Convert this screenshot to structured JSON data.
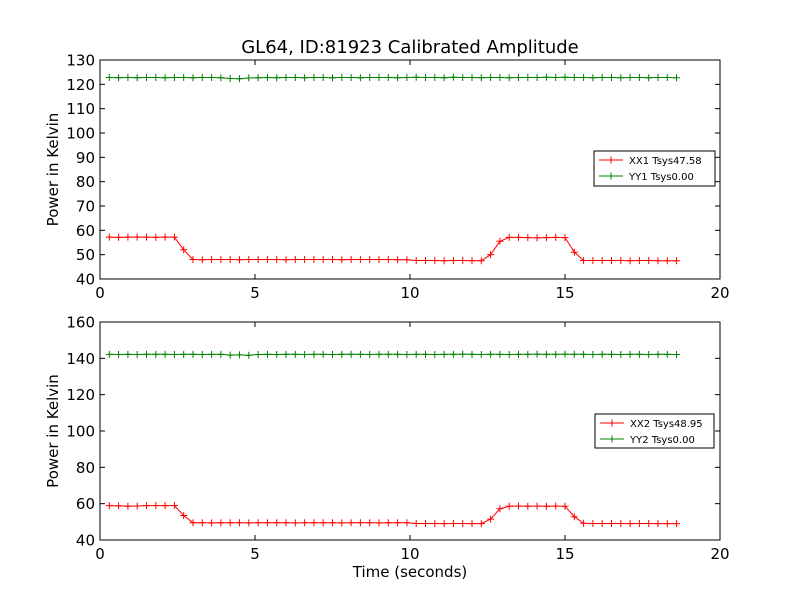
{
  "figure": {
    "title": "GL64, ID:81923 Calibrated Amplitude",
    "xlabel": "Time (seconds)"
  },
  "colors": {
    "xx": "#ff0000",
    "yy": "#008000"
  },
  "chart_data": [
    {
      "type": "line",
      "ylabel": "Power in Kelvin",
      "xlim": [
        0,
        20
      ],
      "ylim": [
        40,
        130
      ],
      "xticks": [
        "0",
        "5",
        "10",
        "15",
        "20"
      ],
      "yticks": [
        "40",
        "50",
        "60",
        "70",
        "80",
        "90",
        "100",
        "110",
        "120",
        "130"
      ],
      "legend_position": "center-right",
      "series": [
        {
          "name": "XX1 Tsys47.58",
          "color": "#ff0000",
          "x": [
            0.3,
            0.6,
            0.9,
            1.2,
            1.5,
            1.8,
            2.1,
            2.4,
            2.7,
            3.0,
            3.3,
            3.6,
            3.9,
            4.2,
            4.5,
            4.8,
            5.1,
            5.4,
            5.7,
            6.0,
            6.3,
            6.6,
            6.9,
            7.2,
            7.5,
            7.8,
            8.1,
            8.4,
            8.7,
            9.0,
            9.3,
            9.6,
            9.9,
            10.2,
            10.5,
            10.8,
            11.1,
            11.4,
            11.7,
            12.0,
            12.3,
            12.6,
            12.9,
            13.2,
            13.5,
            13.8,
            14.1,
            14.4,
            14.7,
            15.0,
            15.3,
            15.6,
            15.9,
            16.2,
            16.5,
            16.8,
            17.1,
            17.4,
            17.7,
            18.0,
            18.3,
            18.6
          ],
          "y": [
            57.2,
            57.1,
            57.2,
            57.2,
            57.2,
            57.1,
            57.2,
            57.2,
            52.0,
            48.0,
            47.9,
            48.0,
            48.0,
            48.0,
            47.9,
            48.0,
            48.0,
            48.0,
            48.0,
            47.9,
            48.0,
            48.0,
            48.0,
            48.0,
            48.0,
            47.9,
            48.0,
            48.0,
            48.0,
            48.0,
            48.0,
            47.9,
            47.9,
            47.6,
            47.6,
            47.6,
            47.5,
            47.6,
            47.6,
            47.5,
            47.5,
            50.0,
            55.5,
            57.1,
            57.1,
            57.0,
            56.9,
            57.0,
            57.1,
            57.0,
            51.0,
            47.6,
            47.6,
            47.6,
            47.6,
            47.6,
            47.5,
            47.6,
            47.6,
            47.5,
            47.5,
            47.5
          ]
        },
        {
          "name": "YY1 Tsys0.00",
          "color": "#008000",
          "x": [
            0.3,
            0.6,
            0.9,
            1.2,
            1.5,
            1.8,
            2.1,
            2.4,
            2.7,
            3.0,
            3.3,
            3.6,
            3.9,
            4.2,
            4.5,
            4.8,
            5.1,
            5.4,
            5.7,
            6.0,
            6.3,
            6.6,
            6.9,
            7.2,
            7.5,
            7.8,
            8.1,
            8.4,
            8.7,
            9.0,
            9.3,
            9.6,
            9.9,
            10.2,
            10.5,
            10.8,
            11.1,
            11.4,
            11.7,
            12.0,
            12.3,
            12.6,
            12.9,
            13.2,
            13.5,
            13.8,
            14.1,
            14.4,
            14.7,
            15.0,
            15.3,
            15.6,
            15.9,
            16.2,
            16.5,
            16.8,
            17.1,
            17.4,
            17.7,
            18.0,
            18.3,
            18.6
          ],
          "y": [
            122.8,
            122.7,
            122.8,
            122.7,
            122.8,
            122.8,
            122.7,
            122.8,
            122.8,
            122.7,
            122.8,
            122.8,
            122.7,
            122.4,
            122.3,
            122.6,
            122.7,
            122.8,
            122.7,
            122.8,
            122.8,
            122.7,
            122.8,
            122.8,
            122.7,
            122.8,
            122.8,
            122.7,
            122.8,
            122.8,
            122.8,
            122.7,
            122.8,
            122.9,
            122.8,
            122.8,
            122.7,
            122.9,
            122.8,
            122.8,
            122.7,
            122.8,
            122.8,
            122.7,
            122.8,
            122.8,
            122.8,
            122.9,
            122.8,
            122.9,
            122.8,
            122.8,
            122.7,
            122.8,
            122.8,
            122.7,
            122.8,
            122.8,
            122.7,
            122.8,
            122.8,
            122.7
          ]
        }
      ]
    },
    {
      "type": "line",
      "ylabel": "Power in Kelvin",
      "xlim": [
        0,
        20
      ],
      "ylim": [
        40,
        160
      ],
      "xticks": [
        "0",
        "5",
        "10",
        "15",
        "20"
      ],
      "yticks": [
        "40",
        "60",
        "80",
        "100",
        "120",
        "140",
        "160"
      ],
      "legend_position": "center-right",
      "series": [
        {
          "name": "XX2 Tsys48.95",
          "color": "#ff0000",
          "x": [
            0.3,
            0.6,
            0.9,
            1.2,
            1.5,
            1.8,
            2.1,
            2.4,
            2.7,
            3.0,
            3.3,
            3.6,
            3.9,
            4.2,
            4.5,
            4.8,
            5.1,
            5.4,
            5.7,
            6.0,
            6.3,
            6.6,
            6.9,
            7.2,
            7.5,
            7.8,
            8.1,
            8.4,
            8.7,
            9.0,
            9.3,
            9.6,
            9.9,
            10.2,
            10.5,
            10.8,
            11.1,
            11.4,
            11.7,
            12.0,
            12.3,
            12.6,
            12.9,
            13.2,
            13.5,
            13.8,
            14.1,
            14.4,
            14.7,
            15.0,
            15.3,
            15.6,
            15.9,
            16.2,
            16.5,
            16.8,
            17.1,
            17.4,
            17.7,
            18.0,
            18.3,
            18.6
          ],
          "y": [
            58.9,
            58.8,
            58.6,
            58.7,
            58.9,
            59.0,
            58.9,
            59.0,
            53.5,
            49.5,
            49.5,
            49.4,
            49.5,
            49.5,
            49.5,
            49.4,
            49.5,
            49.5,
            49.5,
            49.5,
            49.4,
            49.5,
            49.5,
            49.5,
            49.5,
            49.4,
            49.5,
            49.5,
            49.5,
            49.4,
            49.5,
            49.5,
            49.5,
            49.1,
            49.1,
            49.1,
            49.0,
            49.1,
            49.1,
            49.0,
            49.0,
            51.5,
            57.2,
            58.6,
            58.7,
            58.6,
            58.7,
            58.6,
            58.7,
            58.6,
            52.8,
            49.2,
            49.1,
            49.1,
            49.1,
            49.1,
            49.0,
            49.1,
            49.1,
            49.0,
            49.0,
            49.0
          ]
        },
        {
          "name": "YY2 Tsys0.00",
          "color": "#008000",
          "x": [
            0.3,
            0.6,
            0.9,
            1.2,
            1.5,
            1.8,
            2.1,
            2.4,
            2.7,
            3.0,
            3.3,
            3.6,
            3.9,
            4.2,
            4.5,
            4.8,
            5.1,
            5.4,
            5.7,
            6.0,
            6.3,
            6.6,
            6.9,
            7.2,
            7.5,
            7.8,
            8.1,
            8.4,
            8.7,
            9.0,
            9.3,
            9.6,
            9.9,
            10.2,
            10.5,
            10.8,
            11.1,
            11.4,
            11.7,
            12.0,
            12.3,
            12.6,
            12.9,
            13.2,
            13.5,
            13.8,
            14.1,
            14.4,
            14.7,
            15.0,
            15.3,
            15.6,
            15.9,
            16.2,
            16.5,
            16.8,
            17.1,
            17.4,
            17.7,
            18.0,
            18.3,
            18.6
          ],
          "y": [
            142.2,
            142.1,
            142.2,
            142.1,
            142.2,
            142.2,
            142.2,
            142.1,
            142.2,
            142.2,
            142.1,
            142.2,
            142.2,
            141.8,
            141.9,
            141.7,
            142.1,
            142.2,
            142.1,
            142.2,
            142.2,
            142.1,
            142.2,
            142.2,
            142.1,
            142.2,
            142.2,
            142.2,
            142.1,
            142.2,
            142.2,
            142.2,
            142.1,
            142.2,
            142.2,
            142.1,
            142.2,
            142.2,
            142.3,
            142.2,
            142.1,
            142.2,
            142.2,
            142.1,
            142.2,
            142.2,
            142.3,
            142.2,
            142.2,
            142.3,
            142.2,
            142.2,
            142.1,
            142.2,
            142.2,
            142.1,
            142.2,
            142.2,
            142.1,
            142.2,
            142.2,
            142.1
          ]
        }
      ]
    }
  ]
}
